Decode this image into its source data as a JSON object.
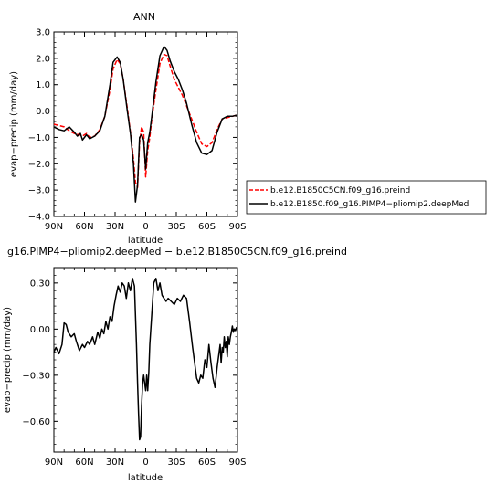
{
  "chart_data": [
    {
      "type": "line",
      "title": "ANN",
      "xlabel": "latitude",
      "ylabel": "evap−precip (mm/day)",
      "x_ticks": [
        "90N",
        "60N",
        "30N",
        "0",
        "30S",
        "60S",
        "90S"
      ],
      "y_ticks": [
        "3.0",
        "2.0",
        "1.0",
        "0.0",
        "−1.0",
        "−2.0",
        "−3.0",
        "−4.0"
      ],
      "xlim": [
        90,
        -90
      ],
      "ylim": [
        -4,
        3
      ],
      "legend_position": "right",
      "series": [
        {
          "name": "b.e12.B1850C5CN.f09_g16.preind",
          "color": "#ff0000",
          "dash": "dashed",
          "x": [
            90,
            85,
            80,
            75,
            70,
            65,
            62,
            58,
            55,
            50,
            45,
            40,
            35,
            32,
            28,
            25,
            22,
            18,
            15,
            12,
            10,
            8,
            6,
            4,
            2,
            0,
            -2,
            -4,
            -6,
            -10,
            -14,
            -18,
            -21,
            -24,
            -28,
            -32,
            -36,
            -40,
            -45,
            -50,
            -55,
            -60,
            -65,
            -70,
            -75,
            -80,
            -85,
            -90
          ],
          "y": [
            -0.5,
            -0.55,
            -0.6,
            -0.75,
            -0.85,
            -0.9,
            -0.95,
            -0.85,
            -1.0,
            -0.95,
            -0.7,
            -0.2,
            0.8,
            1.6,
            1.95,
            1.8,
            1.2,
            0.1,
            -0.8,
            -1.8,
            -2.7,
            -2.9,
            -1.2,
            -0.6,
            -0.8,
            -2.5,
            -1.5,
            -1.0,
            -0.3,
            0.8,
            1.8,
            2.15,
            2.1,
            1.7,
            1.2,
            0.9,
            0.6,
            0.2,
            -0.3,
            -0.8,
            -1.25,
            -1.35,
            -1.2,
            -0.7,
            -0.3,
            -0.25,
            -0.2,
            -0.15
          ]
        },
        {
          "name": "b.e12.B1850.f09_g16.PIMP4−pliomip2.deepMed",
          "color": "#000000",
          "dash": "solid",
          "x": [
            90,
            85,
            80,
            75,
            70,
            67,
            64,
            62,
            58,
            55,
            50,
            45,
            40,
            35,
            32,
            28,
            25,
            22,
            18,
            15,
            12,
            10,
            8,
            6,
            4,
            2,
            0,
            -2,
            -4,
            -6,
            -10,
            -14,
            -18,
            -21,
            -24,
            -28,
            -32,
            -36,
            -40,
            -45,
            -50,
            -55,
            -60,
            -65,
            -70,
            -75,
            -80,
            -85,
            -90
          ],
          "y": [
            -0.6,
            -0.7,
            -0.75,
            -0.6,
            -0.8,
            -0.95,
            -0.85,
            -1.1,
            -0.9,
            -1.05,
            -0.95,
            -0.75,
            -0.2,
            1.0,
            1.85,
            2.05,
            1.85,
            1.2,
            0.0,
            -0.85,
            -2.0,
            -3.45,
            -2.8,
            -1.0,
            -0.9,
            -1.1,
            -2.2,
            -1.2,
            -0.8,
            -0.2,
            1.1,
            2.1,
            2.45,
            2.3,
            1.9,
            1.5,
            1.2,
            0.8,
            0.3,
            -0.5,
            -1.2,
            -1.6,
            -1.65,
            -1.5,
            -0.8,
            -0.3,
            -0.2,
            -0.2,
            -0.15
          ]
        }
      ]
    },
    {
      "type": "line",
      "title": "g16.PIMP4−pliomip2.deepMed − b.e12.B1850C5CN.f09_g16.preind",
      "xlabel": "latitude",
      "ylabel": "evap−precip (mm/day)",
      "x_ticks": [
        "90N",
        "60N",
        "30N",
        "0",
        "30S",
        "60S",
        "90S"
      ],
      "y_ticks": [
        "0.30",
        "0.00",
        "−0.30",
        "−0.60"
      ],
      "xlim": [
        90,
        -90
      ],
      "ylim": [
        -0.8,
        0.4
      ],
      "series": [
        {
          "color": "#000000",
          "x": [
            90,
            88,
            85,
            82,
            80,
            78,
            76,
            73,
            70,
            68,
            65,
            62,
            60,
            57,
            55,
            52,
            50,
            47,
            45,
            43,
            41,
            39,
            37,
            35,
            33,
            31,
            29,
            27,
            25,
            23,
            21,
            19,
            17,
            15,
            13,
            11,
            9,
            8,
            7,
            6,
            5,
            4,
            3,
            2,
            1,
            0,
            -1,
            -2,
            -3,
            -4,
            -5,
            -6,
            -7,
            -8,
            -10,
            -12,
            -14,
            -16,
            -18,
            -20,
            -22,
            -25,
            -28,
            -31,
            -34,
            -37,
            -40,
            -43,
            -46,
            -48,
            -50,
            -52,
            -54,
            -56,
            -58,
            -60,
            -62,
            -64,
            -66,
            -68,
            -70,
            -72,
            -73,
            -74,
            -75,
            -76,
            -77,
            -78,
            -79,
            -80,
            -81,
            -82,
            -83,
            -84,
            -85,
            -86,
            -87,
            -88,
            -89,
            -90
          ],
          "y": [
            -0.15,
            -0.12,
            -0.16,
            -0.1,
            0.04,
            0.03,
            -0.02,
            -0.05,
            -0.03,
            -0.08,
            -0.14,
            -0.1,
            -0.12,
            -0.08,
            -0.1,
            -0.05,
            -0.1,
            -0.02,
            -0.06,
            0.0,
            -0.03,
            0.05,
            0.0,
            0.08,
            0.05,
            0.15,
            0.22,
            0.28,
            0.24,
            0.3,
            0.28,
            0.2,
            0.3,
            0.25,
            0.33,
            0.28,
            -0.1,
            -0.35,
            -0.55,
            -0.72,
            -0.7,
            -0.5,
            -0.35,
            -0.3,
            -0.35,
            -0.4,
            -0.3,
            -0.4,
            -0.28,
            -0.1,
            0.0,
            0.1,
            0.2,
            0.3,
            0.33,
            0.25,
            0.3,
            0.22,
            0.2,
            0.18,
            0.2,
            0.18,
            0.16,
            0.2,
            0.18,
            0.22,
            0.2,
            0.05,
            -0.12,
            -0.22,
            -0.32,
            -0.35,
            -0.3,
            -0.32,
            -0.2,
            -0.25,
            -0.1,
            -0.22,
            -0.32,
            -0.38,
            -0.25,
            -0.15,
            -0.1,
            -0.22,
            -0.12,
            -0.15,
            -0.05,
            -0.12,
            -0.08,
            -0.18,
            -0.05,
            -0.1,
            -0.05,
            -0.02,
            0.02,
            -0.02,
            0.0,
            -0.01,
            0.01,
            0.0
          ]
        }
      ]
    }
  ]
}
